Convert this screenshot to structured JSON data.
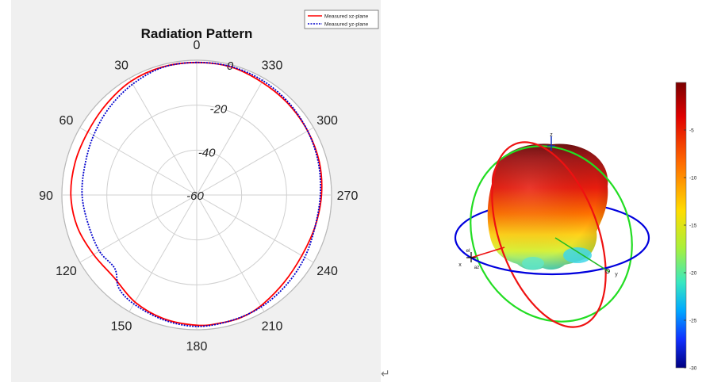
{
  "chart_data": [
    {
      "type": "polar",
      "title": "Radiation Pattern",
      "angle_ticks": [
        "0",
        "30",
        "60",
        "90",
        "120",
        "150",
        "180",
        "210",
        "240",
        "270",
        "300",
        "330"
      ],
      "radial_ticks": [
        "0",
        "-20",
        "-40",
        "-60"
      ],
      "rlim": [
        -60,
        0
      ],
      "grid": true,
      "legend_position": "top-right",
      "series": [
        {
          "name": "Measured xz-plane",
          "color": "#ff0000",
          "style": "solid",
          "points": [
            [
              0,
              -1
            ],
            [
              15,
              -1
            ],
            [
              30,
              -1.5
            ],
            [
              45,
              -3
            ],
            [
              60,
              -4
            ],
            [
              75,
              -4
            ],
            [
              90,
              -4
            ],
            [
              105,
              -5
            ],
            [
              120,
              -7
            ],
            [
              135,
              -8
            ],
            [
              150,
              -5
            ],
            [
              165,
              -3
            ],
            [
              180,
              -2
            ],
            [
              190,
              -2
            ],
            [
              200,
              -2
            ],
            [
              210,
              -3
            ],
            [
              225,
              -5
            ],
            [
              240,
              -6
            ],
            [
              255,
              -5.5
            ],
            [
              270,
              -4.5
            ],
            [
              285,
              -3.5
            ],
            [
              300,
              -3
            ],
            [
              315,
              -2.5
            ],
            [
              330,
              -2
            ],
            [
              345,
              -1
            ]
          ]
        },
        {
          "name": "Measured yz-plane",
          "color": "#0000cc",
          "style": "dotted",
          "points": [
            [
              0,
              -1
            ],
            [
              15,
              -1.2
            ],
            [
              30,
              -3
            ],
            [
              45,
              -5
            ],
            [
              60,
              -7
            ],
            [
              75,
              -8.5
            ],
            [
              90,
              -9
            ],
            [
              105,
              -10
            ],
            [
              120,
              -10
            ],
            [
              132,
              -11
            ],
            [
              140,
              -6
            ],
            [
              150,
              -4
            ],
            [
              165,
              -2.5
            ],
            [
              180,
              -1.5
            ],
            [
              195,
              -2
            ],
            [
              210,
              -2.5
            ],
            [
              225,
              -3.5
            ],
            [
              240,
              -4.5
            ],
            [
              255,
              -5.5
            ],
            [
              270,
              -5
            ],
            [
              285,
              -4
            ],
            [
              300,
              -3
            ],
            [
              315,
              -2
            ],
            [
              330,
              -1.2
            ],
            [
              345,
              -0.8
            ]
          ]
        }
      ]
    },
    {
      "type": "3d-pattern",
      "axis_labels": [
        "x",
        "y",
        "z",
        "az",
        "el"
      ],
      "colorbar": {
        "ticks": [
          "-5",
          "-10",
          "-15",
          "-20",
          "-25",
          "-30"
        ],
        "range": [
          -30,
          0
        ]
      }
    }
  ]
}
